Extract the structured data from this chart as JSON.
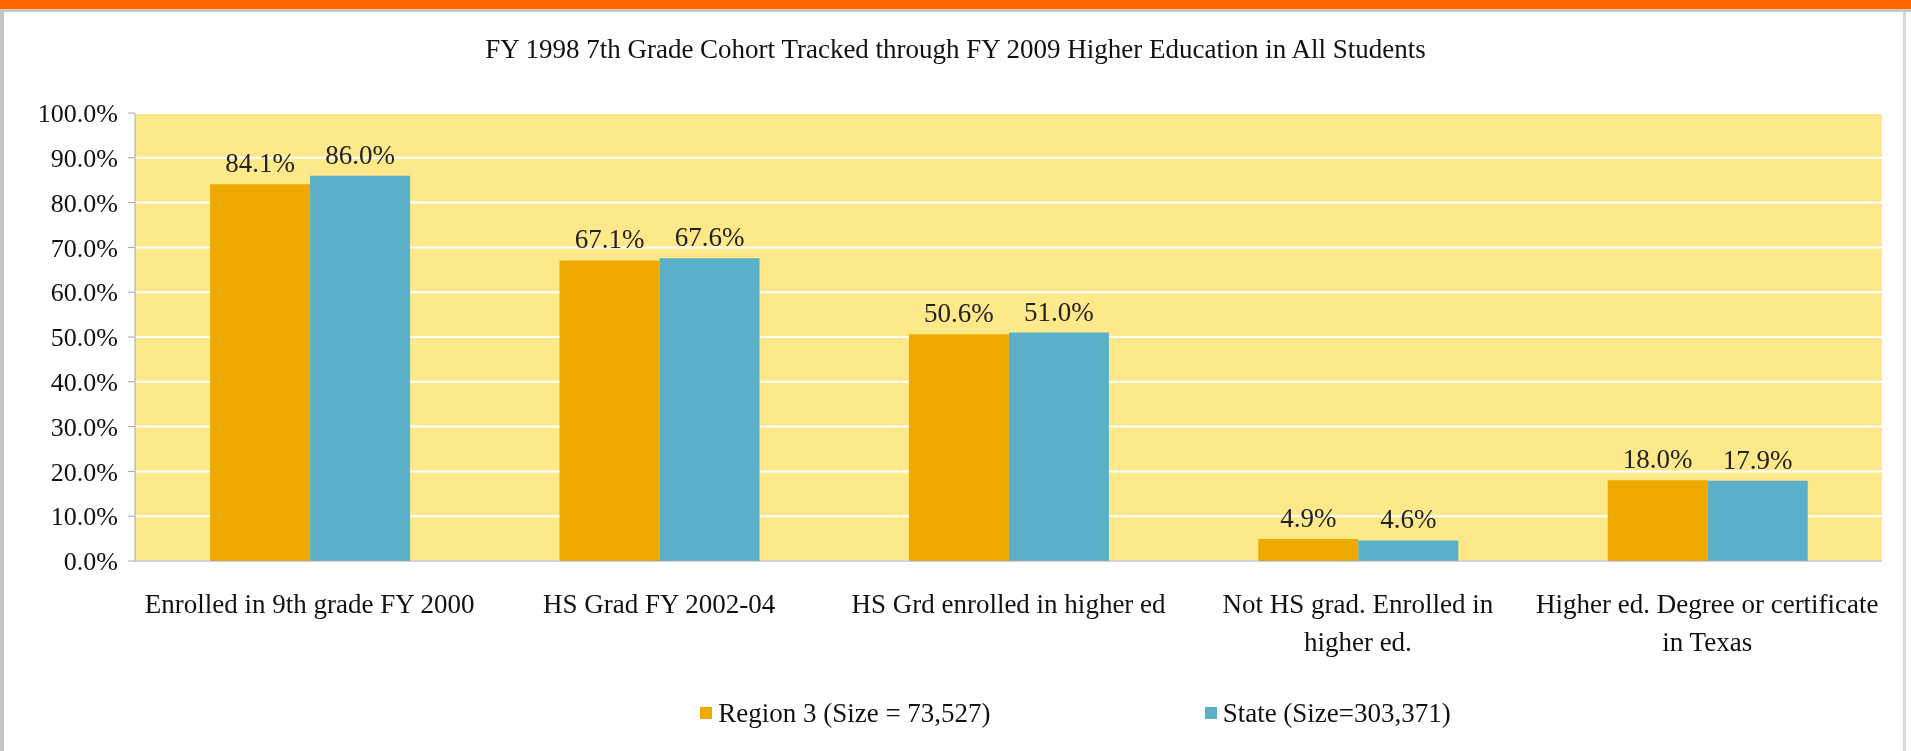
{
  "chart_data": {
    "type": "bar",
    "title": "FY 1998 7th Grade Cohort Tracked through FY 2009 Higher Education in All Students",
    "categories": [
      "Enrolled in 9th grade FY 2000",
      "HS Grad FY 2002-04",
      "HS Grd enrolled in higher ed",
      "Not HS grad. Enrolled in higher ed.",
      "Higher ed. Degree or certificate in Texas"
    ],
    "series": [
      {
        "name": "Region 3 (Size = 73,527)",
        "color": "#eeaa00",
        "values": [
          84.1,
          67.1,
          50.6,
          4.9,
          18.0
        ],
        "value_labels": [
          "84.1%",
          "67.1%",
          "50.6%",
          "4.9%",
          "18.0%"
        ]
      },
      {
        "name": "State (Size=303,371)",
        "color": "#5aafc9",
        "values": [
          86.0,
          67.6,
          51.0,
          4.6,
          17.9
        ],
        "value_labels": [
          "86.0%",
          "67.6%",
          "51.0%",
          "4.6%",
          "17.9%"
        ]
      }
    ],
    "ylim": [
      0,
      100
    ],
    "yticks": [
      {
        "value": 0,
        "label": "0.0%"
      },
      {
        "value": 10,
        "label": "10.0%"
      },
      {
        "value": 20,
        "label": "20.0%"
      },
      {
        "value": 30,
        "label": "30.0%"
      },
      {
        "value": 40,
        "label": "40.0%"
      },
      {
        "value": 50,
        "label": "50.0%"
      },
      {
        "value": 60,
        "label": "60.0%"
      },
      {
        "value": 70,
        "label": "70.0%"
      },
      {
        "value": 80,
        "label": "80.0%"
      },
      {
        "value": 90,
        "label": "90.0%"
      },
      {
        "value": 100,
        "label": "100.0%"
      }
    ],
    "grid": "y",
    "legend": "bottom"
  }
}
